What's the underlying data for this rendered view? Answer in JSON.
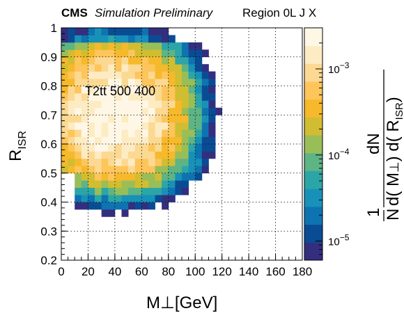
{
  "header": {
    "experiment": "CMS",
    "status": "Simulation Preliminary",
    "region": "Region 0L J X"
  },
  "annotation": "T2tt 500 400",
  "colorbar_title": {
    "numerator_1": "1",
    "numerator_2": "dN",
    "denominator": "N d(M⊥) d(RISR)"
  },
  "colors": {
    "scale": [
      "#332f7e",
      "#0a4c94",
      "#0e73b1",
      "#1891b9",
      "#2ca5a6",
      "#5db485",
      "#99be58",
      "#d1bd31",
      "#f5b92b",
      "#fdc55a",
      "#fcd992",
      "#fdebc3",
      "#fff7e6"
    ]
  },
  "chart_data": {
    "type": "heatmap",
    "title": "",
    "xlabel": "M⊥[GeV]",
    "ylabel": "RISR",
    "zlabel": "1/N dN/(d(M⊥) d(RISR))",
    "x_range": [
      0,
      180
    ],
    "y_range": [
      0.2,
      1.0
    ],
    "z_scale": "log",
    "z_range": [
      6e-06,
      0.003
    ],
    "x_bins": 36,
    "y_bins": 32,
    "x_ticks": [
      "0",
      "20",
      "40",
      "60",
      "80",
      "100",
      "120",
      "140",
      "160",
      "180"
    ],
    "y_ticks": [
      "0.2",
      "0.3",
      "0.4",
      "0.5",
      "0.6",
      "0.7",
      "0.8",
      "0.9",
      "1"
    ],
    "z_ticks": [
      "10^-5",
      "10^-4",
      "10^-3"
    ],
    "grid": true,
    "peak": {
      "x": 40,
      "y": 0.7,
      "value": 0.003
    },
    "note": "Density peaks around M⊥≈40 GeV, RISR≈0.7–0.8 and falls off toward low RISR and high M⊥; empty bins at low RISR, high M⊥ and RISR≈1."
  }
}
